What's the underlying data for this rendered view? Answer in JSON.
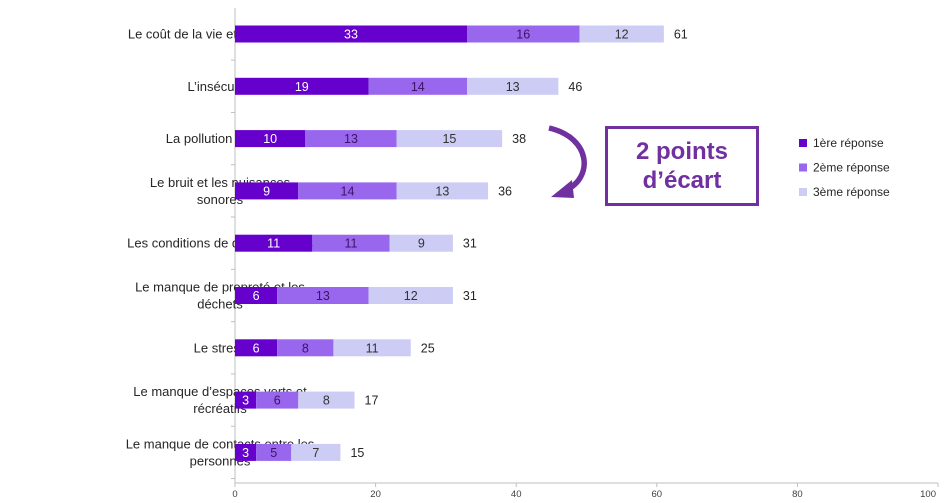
{
  "chart_data": {
    "type": "bar",
    "orientation": "horizontal",
    "stacked": true,
    "categories": [
      "Le coût de la vie et du logement",
      "L’insécurité",
      "La pollution de l’air",
      "Le bruit et les nuisances sonores",
      "Les conditions de déplacements",
      "Le manque de propreté et les déchets",
      "Le stress",
      "Le manque d’espaces verts et récréatifs",
      "Le manque de contacts entre les personnes"
    ],
    "series": [
      {
        "name": "1ère réponse",
        "color": "#6600cc",
        "values": [
          33,
          19,
          10,
          9,
          11,
          6,
          6,
          3,
          3
        ]
      },
      {
        "name": "2ème réponse",
        "color": "#9966ee",
        "values": [
          16,
          14,
          13,
          14,
          11,
          13,
          8,
          6,
          5
        ]
      },
      {
        "name": "3ème réponse",
        "color": "#ccccf5",
        "values": [
          12,
          13,
          15,
          13,
          9,
          12,
          11,
          8,
          7
        ]
      }
    ],
    "totals": [
      61,
      46,
      38,
      36,
      31,
      31,
      25,
      17,
      15
    ],
    "xlim": [
      0,
      100
    ],
    "xticks": [
      0,
      20,
      40,
      60,
      80,
      100
    ],
    "grid": false,
    "legend_position": "right",
    "annotation": {
      "line1": "2 points",
      "line2": "d’écart",
      "arrow_from_category": "La pollution de l’air",
      "arrow_to_category": "Le bruit et les nuisances sonores",
      "color": "#7030a0"
    }
  }
}
